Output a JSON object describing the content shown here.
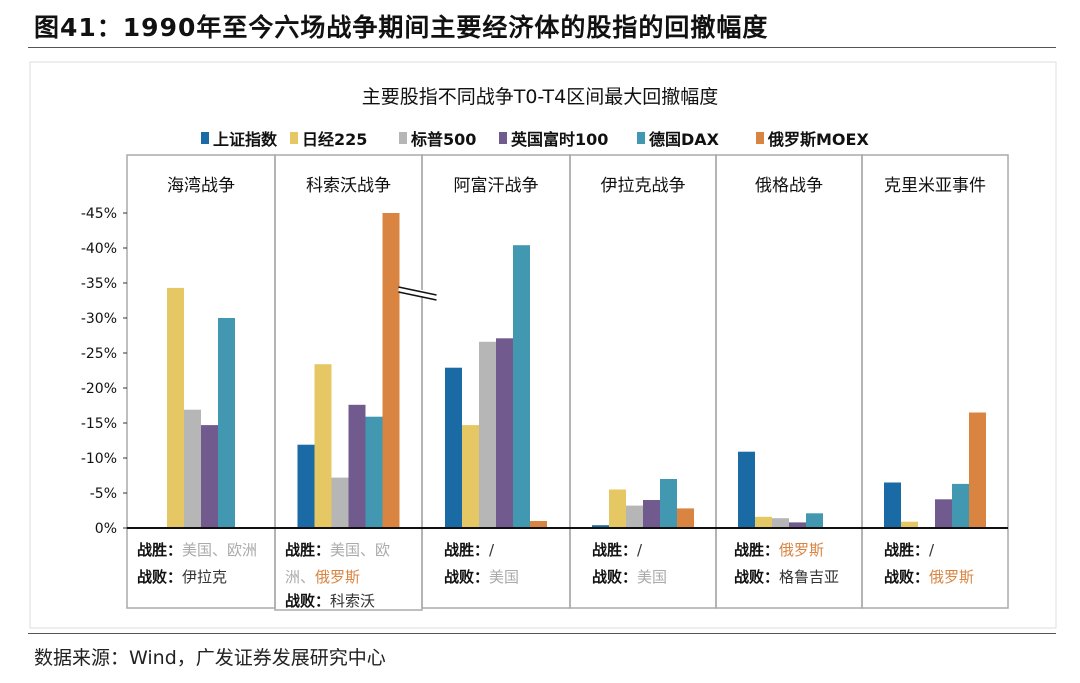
{
  "figure_title": "图41：1990年至今六场战争期间主要经济体的股指的回撤幅度",
  "source": "数据来源：Wind，广发证券发展研究中心",
  "chart_data": {
    "type": "bar",
    "title": "主要股指不同战争T0-T4区间最大回撤幅度",
    "legend_position": "top",
    "ylim": [
      0,
      -45
    ],
    "y_ticks": [
      "0%",
      "-5%",
      "-10%",
      "-15%",
      "-20%",
      "-25%",
      "-30%",
      "-35%",
      "-40%",
      "-45%"
    ],
    "categories": [
      "海湾战争",
      "科索沃战争",
      "阿富汗战争",
      "伊拉克战争",
      "俄格战争",
      "克里米亚事件"
    ],
    "series": [
      {
        "name": "上证指数",
        "color": "#1a6aa5",
        "values": [
          null,
          -11.9,
          -22.9,
          -0.4,
          -10.9,
          -6.5
        ]
      },
      {
        "name": "日经225",
        "color": "#e5c763",
        "values": [
          -34.3,
          -23.4,
          -14.7,
          -5.5,
          -1.6,
          -0.9
        ]
      },
      {
        "name": "标普500",
        "color": "#b6b6b6",
        "values": [
          -16.9,
          -7.2,
          -26.6,
          -3.2,
          -1.4,
          null
        ]
      },
      {
        "name": "英国富时100",
        "color": "#705a8e",
        "values": [
          -14.7,
          -17.6,
          -27.1,
          -4.0,
          -0.8,
          -4.1
        ]
      },
      {
        "name": "德国DAX",
        "color": "#4298b0",
        "values": [
          -30.0,
          -15.9,
          -40.4,
          -7.0,
          -2.1,
          -6.3
        ]
      },
      {
        "name": "俄罗斯MOEX",
        "color": "#d98440",
        "values": [
          null,
          -45,
          -1.0,
          -2.8,
          null,
          -16.5
        ]
      }
    ],
    "axis_break": {
      "category": "科索沃战争",
      "series": "俄罗斯MOEX"
    },
    "panel_notes": [
      {
        "win_label": "战胜：",
        "win": "美国、欧洲",
        "win_color": "#aaaaaa",
        "lose_label": "战败：",
        "lose": "伊拉克",
        "lose_color": "#333333"
      },
      {
        "win_label": "战胜：",
        "win": "美国、欧",
        "win2_a": "洲、",
        "win2_b": "俄罗斯",
        "win_color": "#aaaaaa",
        "win2_b_color": "#d98440",
        "lose_label": "战败：",
        "lose": "科索沃",
        "lose_color": "#333333"
      },
      {
        "win_label": "战胜：",
        "win": "/",
        "win_color": "#333333",
        "lose_label": "战败：",
        "lose": "美国",
        "lose_color": "#aaaaaa"
      },
      {
        "win_label": "战胜：",
        "win": "/",
        "win_color": "#333333",
        "lose_label": "战败：",
        "lose": "美国",
        "lose_color": "#aaaaaa"
      },
      {
        "win_label": "战胜：",
        "win": "俄罗斯",
        "win_color": "#d98440",
        "lose_label": "战败：",
        "lose": "格鲁吉亚",
        "lose_color": "#333333"
      },
      {
        "win_label": "战胜：",
        "win": "/",
        "win_color": "#333333",
        "lose_label": "战败：",
        "lose": "俄罗斯",
        "lose_color": "#d98440"
      }
    ]
  }
}
